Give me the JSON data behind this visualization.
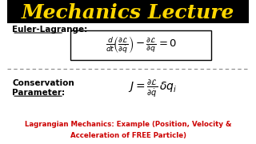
{
  "title": "Mechanics Lecture",
  "title_color": "#FFD700",
  "title_bg": "#000000",
  "title_fontsize": 18,
  "euler_label": "Euler-Lagrange:",
  "conserv_label_line1": "Conservation",
  "conserv_label_line2": "Parameter:",
  "bottom_text_line1": "Lagrangian Mechanics: Example (Position, Velocity &",
  "bottom_text_line2": "Acceleration of FREE Particle)",
  "bottom_text_color": "#CC0000",
  "bg_color": "#FFFFFF",
  "label_color": "#000000",
  "formula_color": "#000000",
  "box_edge_color": "#000000",
  "dashed_line_color": "#888888"
}
